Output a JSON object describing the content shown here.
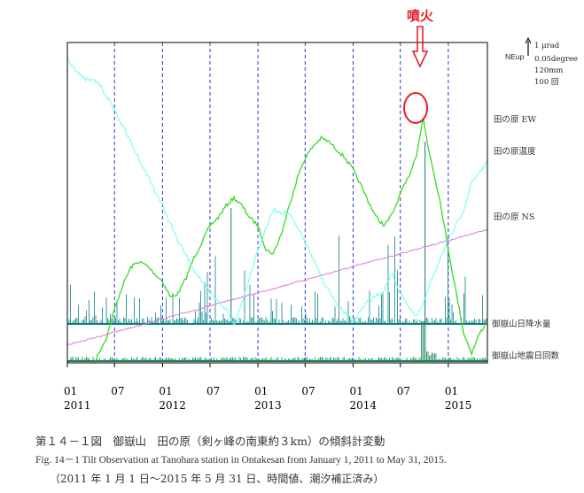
{
  "chart_data": {
    "type": "line",
    "x_range": [
      "2011-01-01",
      "2015-05-31"
    ],
    "x_ticks": [
      {
        "date": "2011-01-01",
        "month": "01",
        "year": "2011"
      },
      {
        "date": "2011-07-01",
        "month": "07",
        "year": ""
      },
      {
        "date": "2012-01-01",
        "month": "01",
        "year": "2012"
      },
      {
        "date": "2012-07-01",
        "month": "07",
        "year": ""
      },
      {
        "date": "2013-01-01",
        "month": "01",
        "year": "2013"
      },
      {
        "date": "2013-07-01",
        "month": "07",
        "year": ""
      },
      {
        "date": "2014-01-01",
        "month": "01",
        "year": "2014"
      },
      {
        "date": "2014-07-01",
        "month": "07",
        "year": ""
      },
      {
        "date": "2015-01-01",
        "month": "01",
        "year": "2015"
      }
    ],
    "scale_bar": [
      "1 μrad",
      "0.05degree",
      "120mm",
      "100 回"
    ],
    "scale_bar_direction": "NEup",
    "eruption_label": "噴火",
    "eruption_date": "2014-09-27",
    "series": [
      {
        "name": "田の原 EW",
        "color": "#33dd22",
        "points": [
          [
            "2011-01-01",
            -0.45
          ],
          [
            "2011-02-01",
            -0.9
          ],
          [
            "2011-03-01",
            -0.98
          ],
          [
            "2011-04-01",
            -0.7
          ],
          [
            "2011-05-01",
            -0.2
          ],
          [
            "2011-06-01",
            0.2
          ],
          [
            "2011-07-01",
            0.9
          ],
          [
            "2011-08-01",
            1.5
          ],
          [
            "2011-09-01",
            1.95
          ],
          [
            "2011-10-01",
            2.1
          ],
          [
            "2011-11-01",
            2.0
          ],
          [
            "2011-12-01",
            1.8
          ],
          [
            "2012-01-01",
            1.6
          ],
          [
            "2012-02-01",
            1.2
          ],
          [
            "2012-03-01",
            1.3
          ],
          [
            "2012-04-01",
            1.7
          ],
          [
            "2012-05-01",
            2.2
          ],
          [
            "2012-06-01",
            2.6
          ],
          [
            "2012-07-01",
            3.0
          ],
          [
            "2012-08-01",
            3.2
          ],
          [
            "2012-09-01",
            3.5
          ],
          [
            "2012-10-01",
            3.7
          ],
          [
            "2012-11-01",
            3.5
          ],
          [
            "2012-12-01",
            3.2
          ],
          [
            "2013-01-01",
            3.0
          ],
          [
            "2013-02-01",
            2.4
          ],
          [
            "2013-03-01",
            2.3
          ],
          [
            "2013-04-01",
            2.8
          ],
          [
            "2013-05-01",
            3.5
          ],
          [
            "2013-06-01",
            4.2
          ],
          [
            "2013-07-01",
            4.7
          ],
          [
            "2013-08-01",
            5.0
          ],
          [
            "2013-09-01",
            5.2
          ],
          [
            "2013-10-01",
            5.1
          ],
          [
            "2013-11-01",
            4.9
          ],
          [
            "2013-12-01",
            4.7
          ],
          [
            "2014-01-01",
            4.4
          ],
          [
            "2014-02-01",
            4.0
          ],
          [
            "2014-03-01",
            3.6
          ],
          [
            "2014-04-01",
            3.2
          ],
          [
            "2014-05-01",
            3.0
          ],
          [
            "2014-06-01",
            3.3
          ],
          [
            "2014-07-01",
            3.8
          ],
          [
            "2014-08-01",
            4.2
          ],
          [
            "2014-09-01",
            4.8
          ],
          [
            "2014-09-27",
            5.7
          ],
          [
            "2014-10-15",
            5.0
          ],
          [
            "2014-11-01",
            4.5
          ],
          [
            "2014-12-01",
            3.6
          ],
          [
            "2015-01-01",
            2.4
          ],
          [
            "2015-02-01",
            1.3
          ],
          [
            "2015-03-01",
            0.3
          ],
          [
            "2015-04-01",
            -0.2
          ],
          [
            "2015-05-01",
            0.3
          ],
          [
            "2015-05-31",
            0.6
          ]
        ]
      },
      {
        "name": "田の原温度",
        "color": "#dd77dd",
        "points": [
          [
            "2011-01-01",
            0.0
          ],
          [
            "2015-05-31",
            2.9
          ]
        ]
      },
      {
        "name": "田の原 NS",
        "color": "#66ffee",
        "points": [
          [
            "2011-01-01",
            7.2
          ],
          [
            "2011-03-01",
            6.7
          ],
          [
            "2011-05-01",
            6.6
          ],
          [
            "2011-07-01",
            5.9
          ],
          [
            "2011-09-01",
            5.1
          ],
          [
            "2011-11-01",
            4.3
          ],
          [
            "2012-01-01",
            3.5
          ],
          [
            "2012-03-01",
            2.6
          ],
          [
            "2012-05-01",
            1.9
          ],
          [
            "2012-07-01",
            1.3
          ],
          [
            "2012-09-01",
            0.9
          ],
          [
            "2012-10-01",
            0.5
          ],
          [
            "2012-11-01",
            1.1
          ],
          [
            "2013-01-01",
            2.4
          ],
          [
            "2013-03-01",
            3.4
          ],
          [
            "2013-05-01",
            3.3
          ],
          [
            "2013-07-01",
            2.6
          ],
          [
            "2013-09-01",
            1.7
          ],
          [
            "2013-11-01",
            1.0
          ],
          [
            "2014-01-01",
            0.6
          ],
          [
            "2014-03-01",
            1.1
          ],
          [
            "2014-05-01",
            1.4
          ],
          [
            "2014-06-01",
            1.8
          ],
          [
            "2014-07-01",
            1.3
          ],
          [
            "2014-09-01",
            0.7
          ],
          [
            "2014-10-01",
            1.1
          ],
          [
            "2014-11-01",
            1.7
          ],
          [
            "2014-12-01",
            2.2
          ],
          [
            "2015-01-01",
            2.6
          ],
          [
            "2015-03-01",
            3.4
          ],
          [
            "2015-04-01",
            4.1
          ],
          [
            "2015-05-31",
            4.6
          ]
        ]
      }
    ],
    "bar_series": [
      {
        "name": "御嶽山日降水量",
        "color": "#0a8080"
      },
      {
        "name": "御嶽山地震日回数",
        "color": "#148050"
      }
    ]
  },
  "captions": {
    "ja": "第１４－１図　御嶽山　田の原（剣ヶ峰の南東約３km）の傾斜計変動",
    "en": "Fig. 14－1 Tilt Observation at Tanohara station in Ontakesan from January 1, 2011 to May 31, 2015.",
    "note": "（2011 年 1 月 1 日～2015 年 5 月 31 日、時間値、潮汐補正済み）"
  },
  "colors": {
    "axis": "#000000",
    "grid": "#3333cc",
    "eruption": "#e8202a"
  }
}
